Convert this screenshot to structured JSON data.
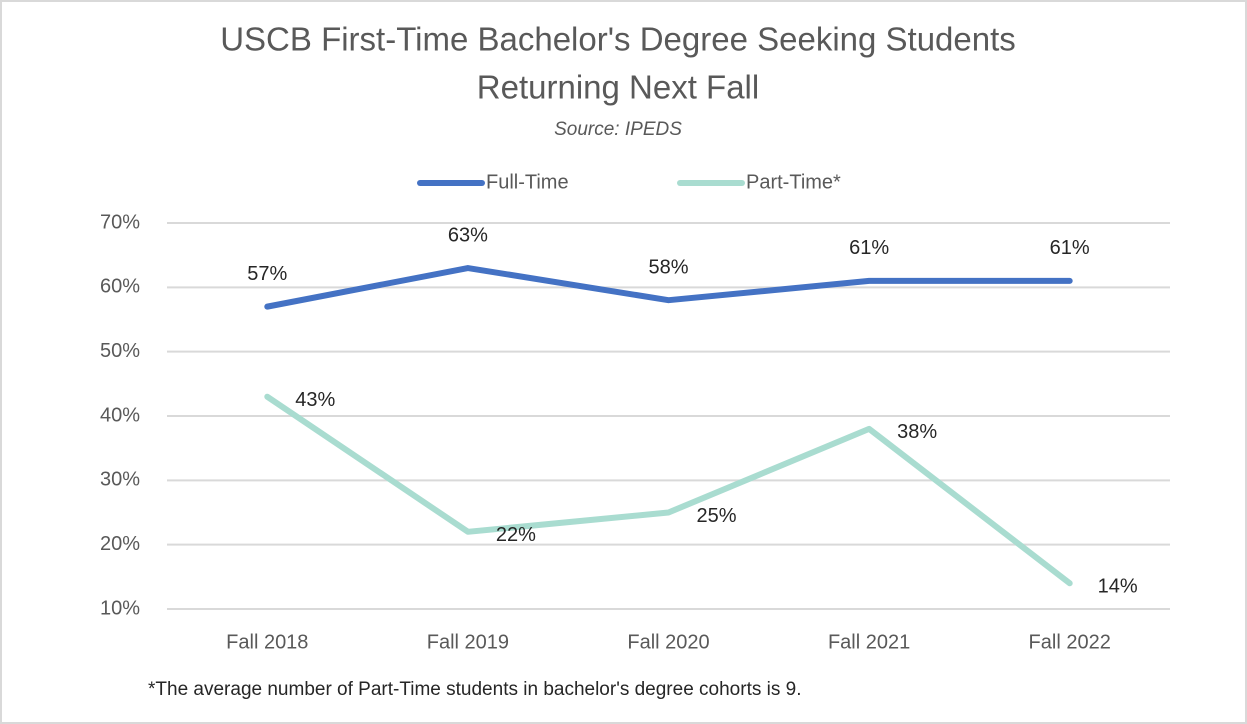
{
  "chart_data": {
    "type": "line",
    "title": [
      "USCB First-Time Bachelor's Degree Seeking Students",
      "Returning Next Fall"
    ],
    "subtitle": "Source: IPEDS",
    "annotation": "*The average number of Part-Time students in bachelor's degree cohorts is 9.",
    "categories": [
      "Fall 2018",
      "Fall 2019",
      "Fall 2020",
      "Fall 2021",
      "Fall 2022"
    ],
    "series": [
      {
        "name": "Full-Time",
        "color": "#4472c4",
        "values": [
          57,
          63,
          58,
          61,
          61
        ],
        "value_labels": [
          "57%",
          "63%",
          "58%",
          "61%",
          "61%"
        ]
      },
      {
        "name": "Part-Time*",
        "color": "#a9dcd0",
        "values": [
          43,
          22,
          25,
          38,
          14
        ],
        "value_labels": [
          "43%",
          "22%",
          "25%",
          "38%",
          "14%"
        ]
      }
    ],
    "ylim": [
      10,
      70
    ],
    "yticks": [
      {
        "value": 10,
        "label": "10%"
      },
      {
        "value": 20,
        "label": "20%"
      },
      {
        "value": 30,
        "label": "30%"
      },
      {
        "value": 40,
        "label": "40%"
      },
      {
        "value": 50,
        "label": "50%"
      },
      {
        "value": 60,
        "label": "60%"
      },
      {
        "value": 70,
        "label": "70%"
      }
    ],
    "grid": true,
    "legend": "top"
  }
}
